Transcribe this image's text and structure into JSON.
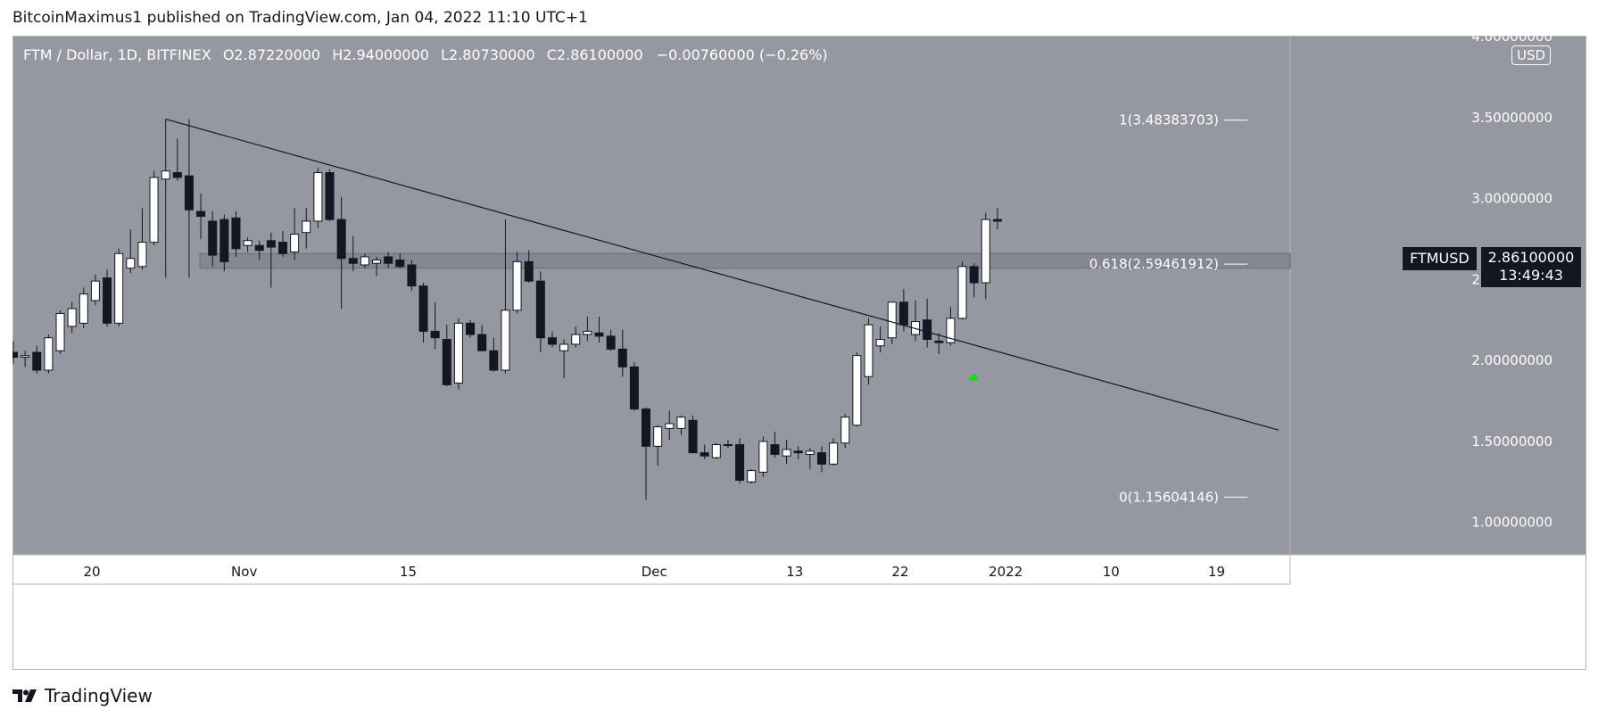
{
  "header": {
    "text": "BitcoinMaximus1 published on TradingView.com, Jan 04, 2022 11:10 UTC+1"
  },
  "legend": {
    "symbol": "FTM / Dollar, 1D, BITFINEX",
    "o_label": "O",
    "o_value": "2.87220000",
    "h_label": "H",
    "h_value": "2.94000000",
    "l_label": "L",
    "l_value": "2.80730000",
    "c_label": "C",
    "c_value": "2.86100000",
    "change": "−0.00760000 (−0.26%)"
  },
  "currency": "USD",
  "last_price": {
    "symbol": "FTMUSD",
    "price": "2.86100000",
    "countdown": "13:49:43"
  },
  "footer": {
    "brand": "TradingView"
  },
  "colors": {
    "background": "#9598a1",
    "up_body": "#ffffff",
    "down_body": "#131722",
    "wick": "#131722",
    "trendline": "#131722",
    "fib_text": "#ffffff",
    "zone": "#787b86",
    "marker": "#00e600"
  },
  "chart_data": {
    "type": "candlestick",
    "symbol": "FTMUSD",
    "interval": "1D",
    "exchange": "BITFINEX",
    "x_tick_labels": [
      "20",
      "Nov",
      "15",
      "Dec",
      "13",
      "22",
      "2022",
      "10",
      "19"
    ],
    "y_tick_labels": [
      "1.00000000",
      "1.50000000",
      "2.00000000",
      "2.50000000",
      "3.00000000",
      "3.50000000",
      "4.00000000"
    ],
    "ylim": [
      0.8,
      4.0
    ],
    "candles": [
      {
        "o": 2.05,
        "h": 2.12,
        "l": 1.98,
        "c": 2.02
      },
      {
        "o": 2.02,
        "h": 2.06,
        "l": 1.96,
        "c": 2.03
      },
      {
        "o": 2.05,
        "h": 2.09,
        "l": 1.92,
        "c": 1.94
      },
      {
        "o": 1.94,
        "h": 2.16,
        "l": 1.92,
        "c": 2.14
      },
      {
        "o": 2.06,
        "h": 2.31,
        "l": 2.04,
        "c": 2.29
      },
      {
        "o": 2.21,
        "h": 2.36,
        "l": 2.17,
        "c": 2.32
      },
      {
        "o": 2.23,
        "h": 2.45,
        "l": 2.2,
        "c": 2.41
      },
      {
        "o": 2.37,
        "h": 2.53,
        "l": 2.34,
        "c": 2.49
      },
      {
        "o": 2.51,
        "h": 2.56,
        "l": 2.21,
        "c": 2.23
      },
      {
        "o": 2.23,
        "h": 2.69,
        "l": 2.21,
        "c": 2.66
      },
      {
        "o": 2.57,
        "h": 2.81,
        "l": 2.54,
        "c": 2.63
      },
      {
        "o": 2.58,
        "h": 2.94,
        "l": 2.56,
        "c": 2.73
      },
      {
        "o": 2.73,
        "h": 3.17,
        "l": 2.71,
        "c": 3.13
      },
      {
        "o": 3.12,
        "h": 3.49,
        "l": 2.51,
        "c": 3.17
      },
      {
        "o": 3.16,
        "h": 3.37,
        "l": 3.11,
        "c": 3.13
      },
      {
        "o": 3.14,
        "h": 3.49,
        "l": 2.51,
        "c": 2.93
      },
      {
        "o": 2.92,
        "h": 3.03,
        "l": 2.75,
        "c": 2.89
      },
      {
        "o": 2.86,
        "h": 2.92,
        "l": 2.58,
        "c": 2.65
      },
      {
        "o": 2.87,
        "h": 2.9,
        "l": 2.55,
        "c": 2.61
      },
      {
        "o": 2.88,
        "h": 2.92,
        "l": 2.64,
        "c": 2.69
      },
      {
        "o": 2.71,
        "h": 2.76,
        "l": 2.67,
        "c": 2.74
      },
      {
        "o": 2.71,
        "h": 2.74,
        "l": 2.62,
        "c": 2.68
      },
      {
        "o": 2.74,
        "h": 2.79,
        "l": 2.45,
        "c": 2.7
      },
      {
        "o": 2.73,
        "h": 2.8,
        "l": 2.64,
        "c": 2.66
      },
      {
        "o": 2.67,
        "h": 2.94,
        "l": 2.62,
        "c": 2.78
      },
      {
        "o": 2.79,
        "h": 2.94,
        "l": 2.69,
        "c": 2.86
      },
      {
        "o": 2.86,
        "h": 3.19,
        "l": 2.82,
        "c": 3.16
      },
      {
        "o": 3.16,
        "h": 3.18,
        "l": 2.86,
        "c": 2.87
      },
      {
        "o": 2.87,
        "h": 3.01,
        "l": 2.32,
        "c": 2.63
      },
      {
        "o": 2.63,
        "h": 2.77,
        "l": 2.55,
        "c": 2.6
      },
      {
        "o": 2.59,
        "h": 2.66,
        "l": 2.57,
        "c": 2.64
      },
      {
        "o": 2.6,
        "h": 2.64,
        "l": 2.52,
        "c": 2.62
      },
      {
        "o": 2.64,
        "h": 2.67,
        "l": 2.57,
        "c": 2.6
      },
      {
        "o": 2.62,
        "h": 2.66,
        "l": 2.57,
        "c": 2.58
      },
      {
        "o": 2.59,
        "h": 2.62,
        "l": 2.43,
        "c": 2.46
      },
      {
        "o": 2.46,
        "h": 2.48,
        "l": 2.11,
        "c": 2.18
      },
      {
        "o": 2.18,
        "h": 2.36,
        "l": 2.07,
        "c": 2.14
      },
      {
        "o": 2.13,
        "h": 2.22,
        "l": 1.84,
        "c": 1.85
      },
      {
        "o": 1.86,
        "h": 2.26,
        "l": 1.82,
        "c": 2.23
      },
      {
        "o": 2.23,
        "h": 2.25,
        "l": 2.14,
        "c": 2.16
      },
      {
        "o": 2.16,
        "h": 2.22,
        "l": 2.06,
        "c": 2.06
      },
      {
        "o": 2.06,
        "h": 2.14,
        "l": 1.93,
        "c": 1.94
      },
      {
        "o": 1.94,
        "h": 2.87,
        "l": 1.92,
        "c": 2.31
      },
      {
        "o": 2.31,
        "h": 2.67,
        "l": 2.29,
        "c": 2.61
      },
      {
        "o": 2.61,
        "h": 2.68,
        "l": 2.48,
        "c": 2.49
      },
      {
        "o": 2.49,
        "h": 2.55,
        "l": 2.05,
        "c": 2.14
      },
      {
        "o": 2.14,
        "h": 2.18,
        "l": 2.08,
        "c": 2.1
      },
      {
        "o": 2.06,
        "h": 2.13,
        "l": 1.89,
        "c": 2.1
      },
      {
        "o": 2.1,
        "h": 2.21,
        "l": 2.08,
        "c": 2.16
      },
      {
        "o": 2.16,
        "h": 2.27,
        "l": 2.12,
        "c": 2.18
      },
      {
        "o": 2.17,
        "h": 2.27,
        "l": 2.11,
        "c": 2.15
      },
      {
        "o": 2.15,
        "h": 2.19,
        "l": 2.06,
        "c": 2.07
      },
      {
        "o": 2.07,
        "h": 2.19,
        "l": 1.9,
        "c": 1.96
      },
      {
        "o": 1.96,
        "h": 1.99,
        "l": 1.69,
        "c": 1.7
      },
      {
        "o": 1.7,
        "h": 1.71,
        "l": 1.14,
        "c": 1.47
      },
      {
        "o": 1.47,
        "h": 1.6,
        "l": 1.35,
        "c": 1.59
      },
      {
        "o": 1.58,
        "h": 1.69,
        "l": 1.51,
        "c": 1.61
      },
      {
        "o": 1.58,
        "h": 1.66,
        "l": 1.54,
        "c": 1.65
      },
      {
        "o": 1.63,
        "h": 1.66,
        "l": 1.44,
        "c": 1.43
      },
      {
        "o": 1.43,
        "h": 1.48,
        "l": 1.39,
        "c": 1.41
      },
      {
        "o": 1.4,
        "h": 1.49,
        "l": 1.39,
        "c": 1.48
      },
      {
        "o": 1.48,
        "h": 1.51,
        "l": 1.46,
        "c": 1.48
      },
      {
        "o": 1.48,
        "h": 1.52,
        "l": 1.24,
        "c": 1.26
      },
      {
        "o": 1.25,
        "h": 1.33,
        "l": 1.24,
        "c": 1.32
      },
      {
        "o": 1.31,
        "h": 1.53,
        "l": 1.28,
        "c": 1.5
      },
      {
        "o": 1.48,
        "h": 1.56,
        "l": 1.4,
        "c": 1.42
      },
      {
        "o": 1.41,
        "h": 1.51,
        "l": 1.36,
        "c": 1.45
      },
      {
        "o": 1.44,
        "h": 1.47,
        "l": 1.39,
        "c": 1.43
      },
      {
        "o": 1.42,
        "h": 1.46,
        "l": 1.33,
        "c": 1.44
      },
      {
        "o": 1.43,
        "h": 1.47,
        "l": 1.31,
        "c": 1.36
      },
      {
        "o": 1.36,
        "h": 1.52,
        "l": 1.35,
        "c": 1.49
      },
      {
        "o": 1.49,
        "h": 1.67,
        "l": 1.46,
        "c": 1.65
      },
      {
        "o": 1.6,
        "h": 2.05,
        "l": 1.59,
        "c": 2.03
      },
      {
        "o": 1.9,
        "h": 2.26,
        "l": 1.85,
        "c": 2.22
      },
      {
        "o": 2.09,
        "h": 2.21,
        "l": 2.05,
        "c": 2.13
      },
      {
        "o": 2.14,
        "h": 2.35,
        "l": 2.1,
        "c": 2.36
      },
      {
        "o": 2.36,
        "h": 2.44,
        "l": 2.18,
        "c": 2.22
      },
      {
        "o": 2.16,
        "h": 2.37,
        "l": 2.12,
        "c": 2.24
      },
      {
        "o": 2.25,
        "h": 2.38,
        "l": 2.08,
        "c": 2.13
      },
      {
        "o": 2.12,
        "h": 2.17,
        "l": 2.04,
        "c": 2.11
      },
      {
        "o": 2.11,
        "h": 2.33,
        "l": 2.09,
        "c": 2.26
      },
      {
        "o": 2.26,
        "h": 2.61,
        "l": 2.25,
        "c": 2.58
      },
      {
        "o": 2.58,
        "h": 2.6,
        "l": 2.39,
        "c": 2.48
      },
      {
        "o": 2.48,
        "h": 2.91,
        "l": 2.38,
        "c": 2.87
      },
      {
        "o": 2.87,
        "h": 2.94,
        "l": 2.81,
        "c": 2.86
      }
    ],
    "fib_levels": [
      {
        "label": "1(3.48383703)",
        "value": 3.48383703
      },
      {
        "label": "0.618(2.59461912)",
        "value": 2.59461912
      },
      {
        "label": "0(1.15604146)",
        "value": 1.15604146
      }
    ],
    "support_zone": [
      2.57,
      2.66
    ],
    "trendline": {
      "from": {
        "candle": 13,
        "price": 3.49
      },
      "to": {
        "candle": 108,
        "price": 1.57
      }
    },
    "markers": [
      {
        "candle": 82,
        "price": 1.9,
        "shape": "triangle-up"
      }
    ],
    "grid": false
  }
}
